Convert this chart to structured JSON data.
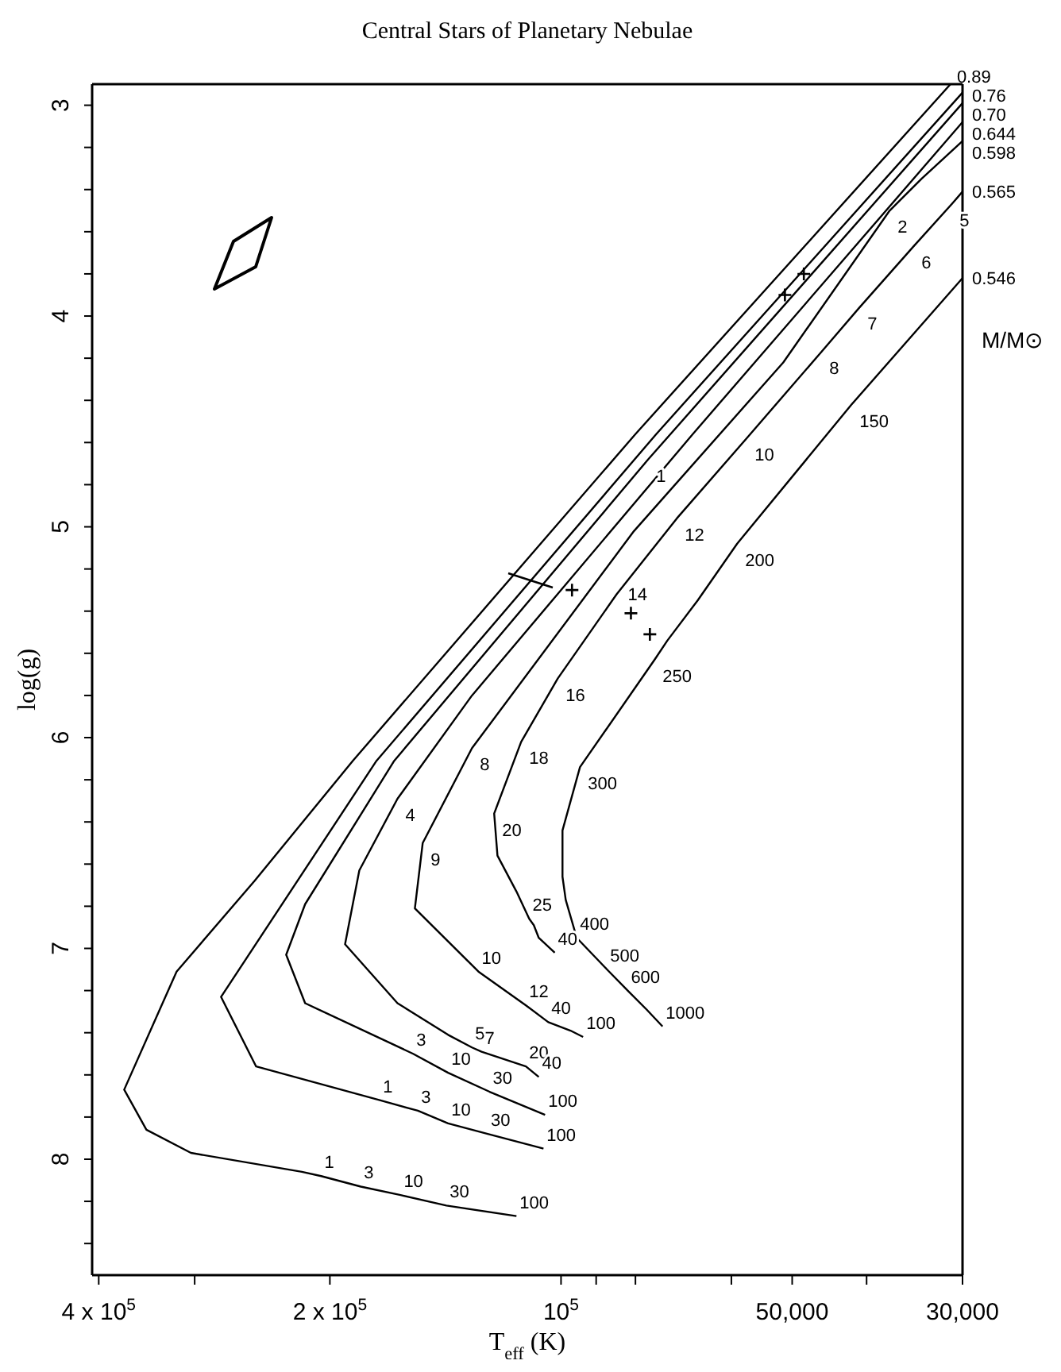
{
  "chart_data": {
    "type": "line",
    "title": "Central Stars of Planetary Nebulae",
    "xlabel": "T$_{eff}$ (K)",
    "ylabel": "log(g)",
    "legend_title": "M/M⊙",
    "log": "x",
    "marker": "none",
    "line_style": "solid",
    "xlim": [
      408000,
      30000
    ],
    "ylim": [
      8.55,
      2.9
    ],
    "xticks": [
      {
        "value": 400000,
        "label": "4 x 10$^{5}$"
      },
      {
        "value": 300000,
        "label": null
      },
      {
        "value": 200000,
        "label": "2 x 10$^{5}$"
      },
      {
        "value": 100000,
        "label": "10$^{5}$"
      },
      {
        "value": 90000,
        "label": null
      },
      {
        "value": 80000,
        "label": null
      },
      {
        "value": 60000,
        "label": null
      },
      {
        "value": 50000,
        "label": "50,000"
      },
      {
        "value": 40000,
        "label": null
      },
      {
        "value": 30000,
        "label": "30,000"
      }
    ],
    "yticks": [
      3,
      {
        "value": 3.2,
        "label": null
      },
      {
        "value": 3.4,
        "label": null
      },
      {
        "value": 3.6,
        "label": null
      },
      {
        "value": 3.8,
        "label": null
      },
      4,
      {
        "value": 4.2,
        "label": null
      },
      {
        "value": 4.4,
        "label": null
      },
      {
        "value": 4.6,
        "label": null
      },
      {
        "value": 4.8,
        "label": null
      },
      5,
      {
        "value": 5.2,
        "label": null
      },
      {
        "value": 5.4,
        "label": null
      },
      {
        "value": 5.6,
        "label": null
      },
      {
        "value": 5.8,
        "label": null
      },
      6,
      {
        "value": 6.2,
        "label": null
      },
      {
        "value": 6.4,
        "label": null
      },
      {
        "value": 6.6,
        "label": null
      },
      {
        "value": 6.8,
        "label": null
      },
      7,
      {
        "value": 7.2,
        "label": null
      },
      {
        "value": 7.4,
        "label": null
      },
      {
        "value": 7.6,
        "label": null
      },
      {
        "value": 7.8,
        "label": null
      },
      8,
      {
        "value": 8.2,
        "label": null
      },
      {
        "value": 8.4,
        "label": null
      }
    ],
    "series": [
      {
        "name": "0.89",
        "color": "#000000",
        "x": [
          31100,
          80000,
          186700,
          250700,
          316700,
          370600,
          346700,
          303400,
          217500,
          205300,
          182300,
          161800,
          141000,
          114300
        ],
        "values": [
          2.9,
          4.56,
          6.11,
          6.68,
          7.11,
          7.67,
          7.86,
          7.97,
          8.06,
          8.08,
          8.13,
          8.17,
          8.22,
          8.27
        ]
      },
      {
        "name": "0.76",
        "color": "#000000",
        "x": [
          30000,
          75160,
          173900,
          277200,
          249500,
          172200,
          153600,
          140300,
          124600,
          105400
        ],
        "values": [
          2.94,
          4.56,
          6.11,
          7.23,
          7.56,
          7.72,
          7.77,
          7.83,
          7.88,
          7.95
        ]
      },
      {
        "name": "0.70",
        "color": "#000000",
        "x": [
          30000,
          76990,
          164900,
          215400,
          228000,
          215400,
          155800,
          140300,
          123900,
          104900
        ],
        "values": [
          2.99,
          4.68,
          6.11,
          6.79,
          7.03,
          7.26,
          7.5,
          7.59,
          7.68,
          7.79
        ]
      },
      {
        "name": "0.644",
        "color": "#000000",
        "x": [
          30000,
          67360,
          130600,
          163300,
          183100,
          191100,
          163300,
          140300,
          130600,
          126900,
          111100,
          106900
        ],
        "values": [
          3.08,
          4.56,
          5.8,
          6.29,
          6.63,
          6.98,
          7.26,
          7.41,
          7.47,
          7.49,
          7.56,
          7.61
        ]
      },
      {
        "name": "0.598",
        "color": "#000000",
        "x": [
          30000,
          33940,
          37330,
          51350,
          80350,
          130600,
          151400,
          155000,
          128100,
          111100,
          103900,
          97200,
          93600
        ],
        "values": [
          3.17,
          3.35,
          3.5,
          4.22,
          5.02,
          6.05,
          6.5,
          6.81,
          7.11,
          7.27,
          7.35,
          7.39,
          7.42
        ]
      },
      {
        "name": "0.565",
        "color": "#000000",
        "x": [
          30000,
          31000,
          34750,
          40870,
          45810,
          57310,
          70660,
          84650,
          101000,
          112700,
          122200,
          121000,
          114300,
          110000,
          108500,
          106900,
          101900
        ],
        "values": [
          3.41,
          3.47,
          3.67,
          3.96,
          4.17,
          4.58,
          4.96,
          5.32,
          5.72,
          6.02,
          6.36,
          6.56,
          6.73,
          6.86,
          6.89,
          6.95,
          7.02
        ]
      },
      {
        "name": "0.546",
        "color": "#000000",
        "x": [
          30000,
          41850,
          58970,
          66410,
          72710,
          75520,
          94470,
          99560,
          99560,
          98600,
          95390,
          87120,
          81880,
          77360,
          73760
        ],
        "values": [
          3.82,
          4.42,
          5.08,
          5.35,
          5.54,
          5.63,
          6.14,
          6.44,
          6.66,
          6.77,
          6.95,
          7.1,
          7.2,
          7.29,
          7.37
        ]
      },
      {
        "type": "scatter",
        "marker": "cross",
        "color": "#000000",
        "x": [
          96760,
          81090,
          76610,
          48280,
          51100
        ],
        "values": [
          5.3,
          5.41,
          5.51,
          3.8,
          3.9
        ]
      }
    ],
    "annotations": [
      {
        "text": "1",
        "x": 205300,
        "y": 8.08
      },
      {
        "text": "3",
        "x": 182300,
        "y": 8.13
      },
      {
        "text": "10",
        "x": 161800,
        "y": 8.17
      },
      {
        "text": "30",
        "x": 141000,
        "y": 8.22
      },
      {
        "text": "100",
        "x": 114300,
        "y": 8.27
      },
      {
        "text": "1",
        "x": 172200,
        "y": 7.72
      },
      {
        "text": "3",
        "x": 153600,
        "y": 7.77
      },
      {
        "text": "10",
        "x": 140300,
        "y": 7.83
      },
      {
        "text": "30",
        "x": 124600,
        "y": 7.88
      },
      {
        "text": "100",
        "x": 105400,
        "y": 7.95
      },
      {
        "text": "1",
        "x": 76990,
        "y": 4.68
      },
      {
        "text": "3",
        "x": 155800,
        "y": 7.5
      },
      {
        "text": "10",
        "x": 140300,
        "y": 7.59
      },
      {
        "text": "30",
        "x": 123900,
        "y": 7.68
      },
      {
        "text": "100",
        "x": 104900,
        "y": 7.79
      },
      {
        "text": "4",
        "x": 163300,
        "y": 6.29
      },
      {
        "text": "5",
        "x": 130600,
        "y": 7.47
      },
      {
        "text": "7",
        "x": 126900,
        "y": 7.49
      },
      {
        "text": "20",
        "x": 111100,
        "y": 7.56
      },
      {
        "text": "40",
        "x": 106900,
        "y": 7.61
      },
      {
        "text": "2",
        "x": 37330,
        "y": 3.5
      },
      {
        "text": "8",
        "x": 130600,
        "y": 6.05
      },
      {
        "text": "9",
        "x": 151400,
        "y": 6.5
      },
      {
        "text": "10",
        "x": 128100,
        "y": 7.11
      },
      {
        "text": "12",
        "x": 111100,
        "y": 7.27
      },
      {
        "text": "40",
        "x": 103900,
        "y": 7.35
      },
      {
        "text": "100",
        "x": 93600,
        "y": 7.42
      },
      {
        "text": "5",
        "x": 31000,
        "y": 3.47
      },
      {
        "text": "6",
        "x": 34750,
        "y": 3.67
      },
      {
        "text": "7",
        "x": 40870,
        "y": 3.96
      },
      {
        "text": "8",
        "x": 45810,
        "y": 4.17
      },
      {
        "text": "10",
        "x": 57310,
        "y": 4.58
      },
      {
        "text": "12",
        "x": 70660,
        "y": 4.96
      },
      {
        "text": "14",
        "x": 84650,
        "y": 5.32
      },
      {
        "text": "16",
        "x": 101000,
        "y": 5.72
      },
      {
        "text": "18",
        "x": 112700,
        "y": 6.02
      },
      {
        "text": "20",
        "x": 122200,
        "y": 6.36
      },
      {
        "text": "25",
        "x": 110000,
        "y": 6.86
      },
      {
        "text": "40",
        "x": 101900,
        "y": 7.02
      },
      {
        "text": "150",
        "x": 41850,
        "y": 4.42
      },
      {
        "text": "200",
        "x": 58970,
        "y": 5.08
      },
      {
        "text": "250",
        "x": 75520,
        "y": 5.63
      },
      {
        "text": "300",
        "x": 94470,
        "y": 6.14
      },
      {
        "text": "400",
        "x": 95390,
        "y": 6.95
      },
      {
        "text": "500",
        "x": 87120,
        "y": 7.1
      },
      {
        "text": "600",
        "x": 81880,
        "y": 7.2
      },
      {
        "text": "1000",
        "x": 73760,
        "y": 7.37
      }
    ]
  }
}
